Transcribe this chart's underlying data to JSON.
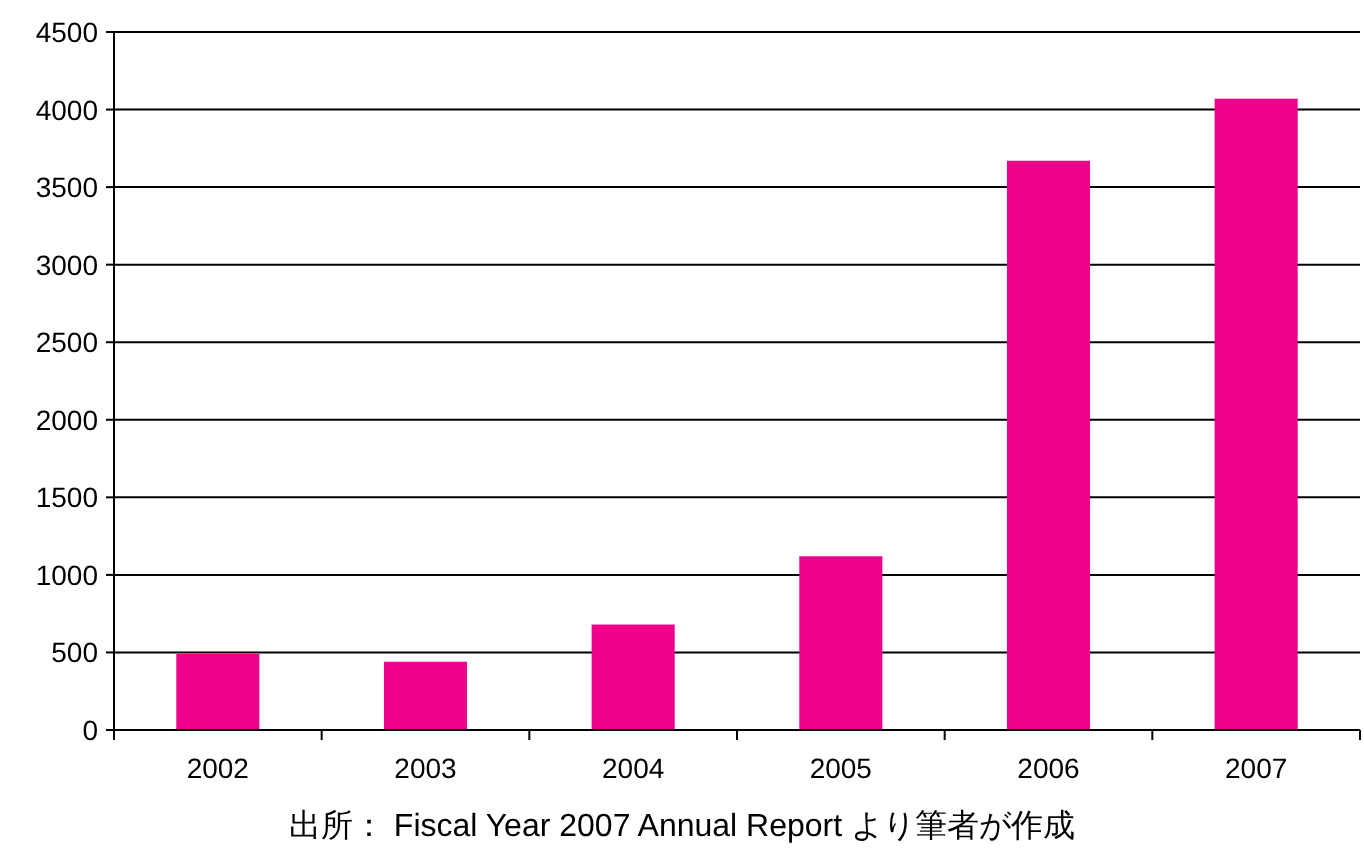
{
  "chart_data": {
    "type": "bar",
    "categories": [
      "2002",
      "2003",
      "2004",
      "2005",
      "2006",
      "2007"
    ],
    "values": [
      490,
      440,
      680,
      1120,
      3670,
      4070
    ],
    "color": "#ec008c",
    "ylim": [
      0,
      4500
    ],
    "yticks": [
      0,
      500,
      1000,
      1500,
      2000,
      2500,
      3000,
      3500,
      4000,
      4500
    ],
    "grid": "y",
    "annotations": [
      "出所： Fiscal Year 2007 Annual Report より筆者が作成"
    ]
  }
}
